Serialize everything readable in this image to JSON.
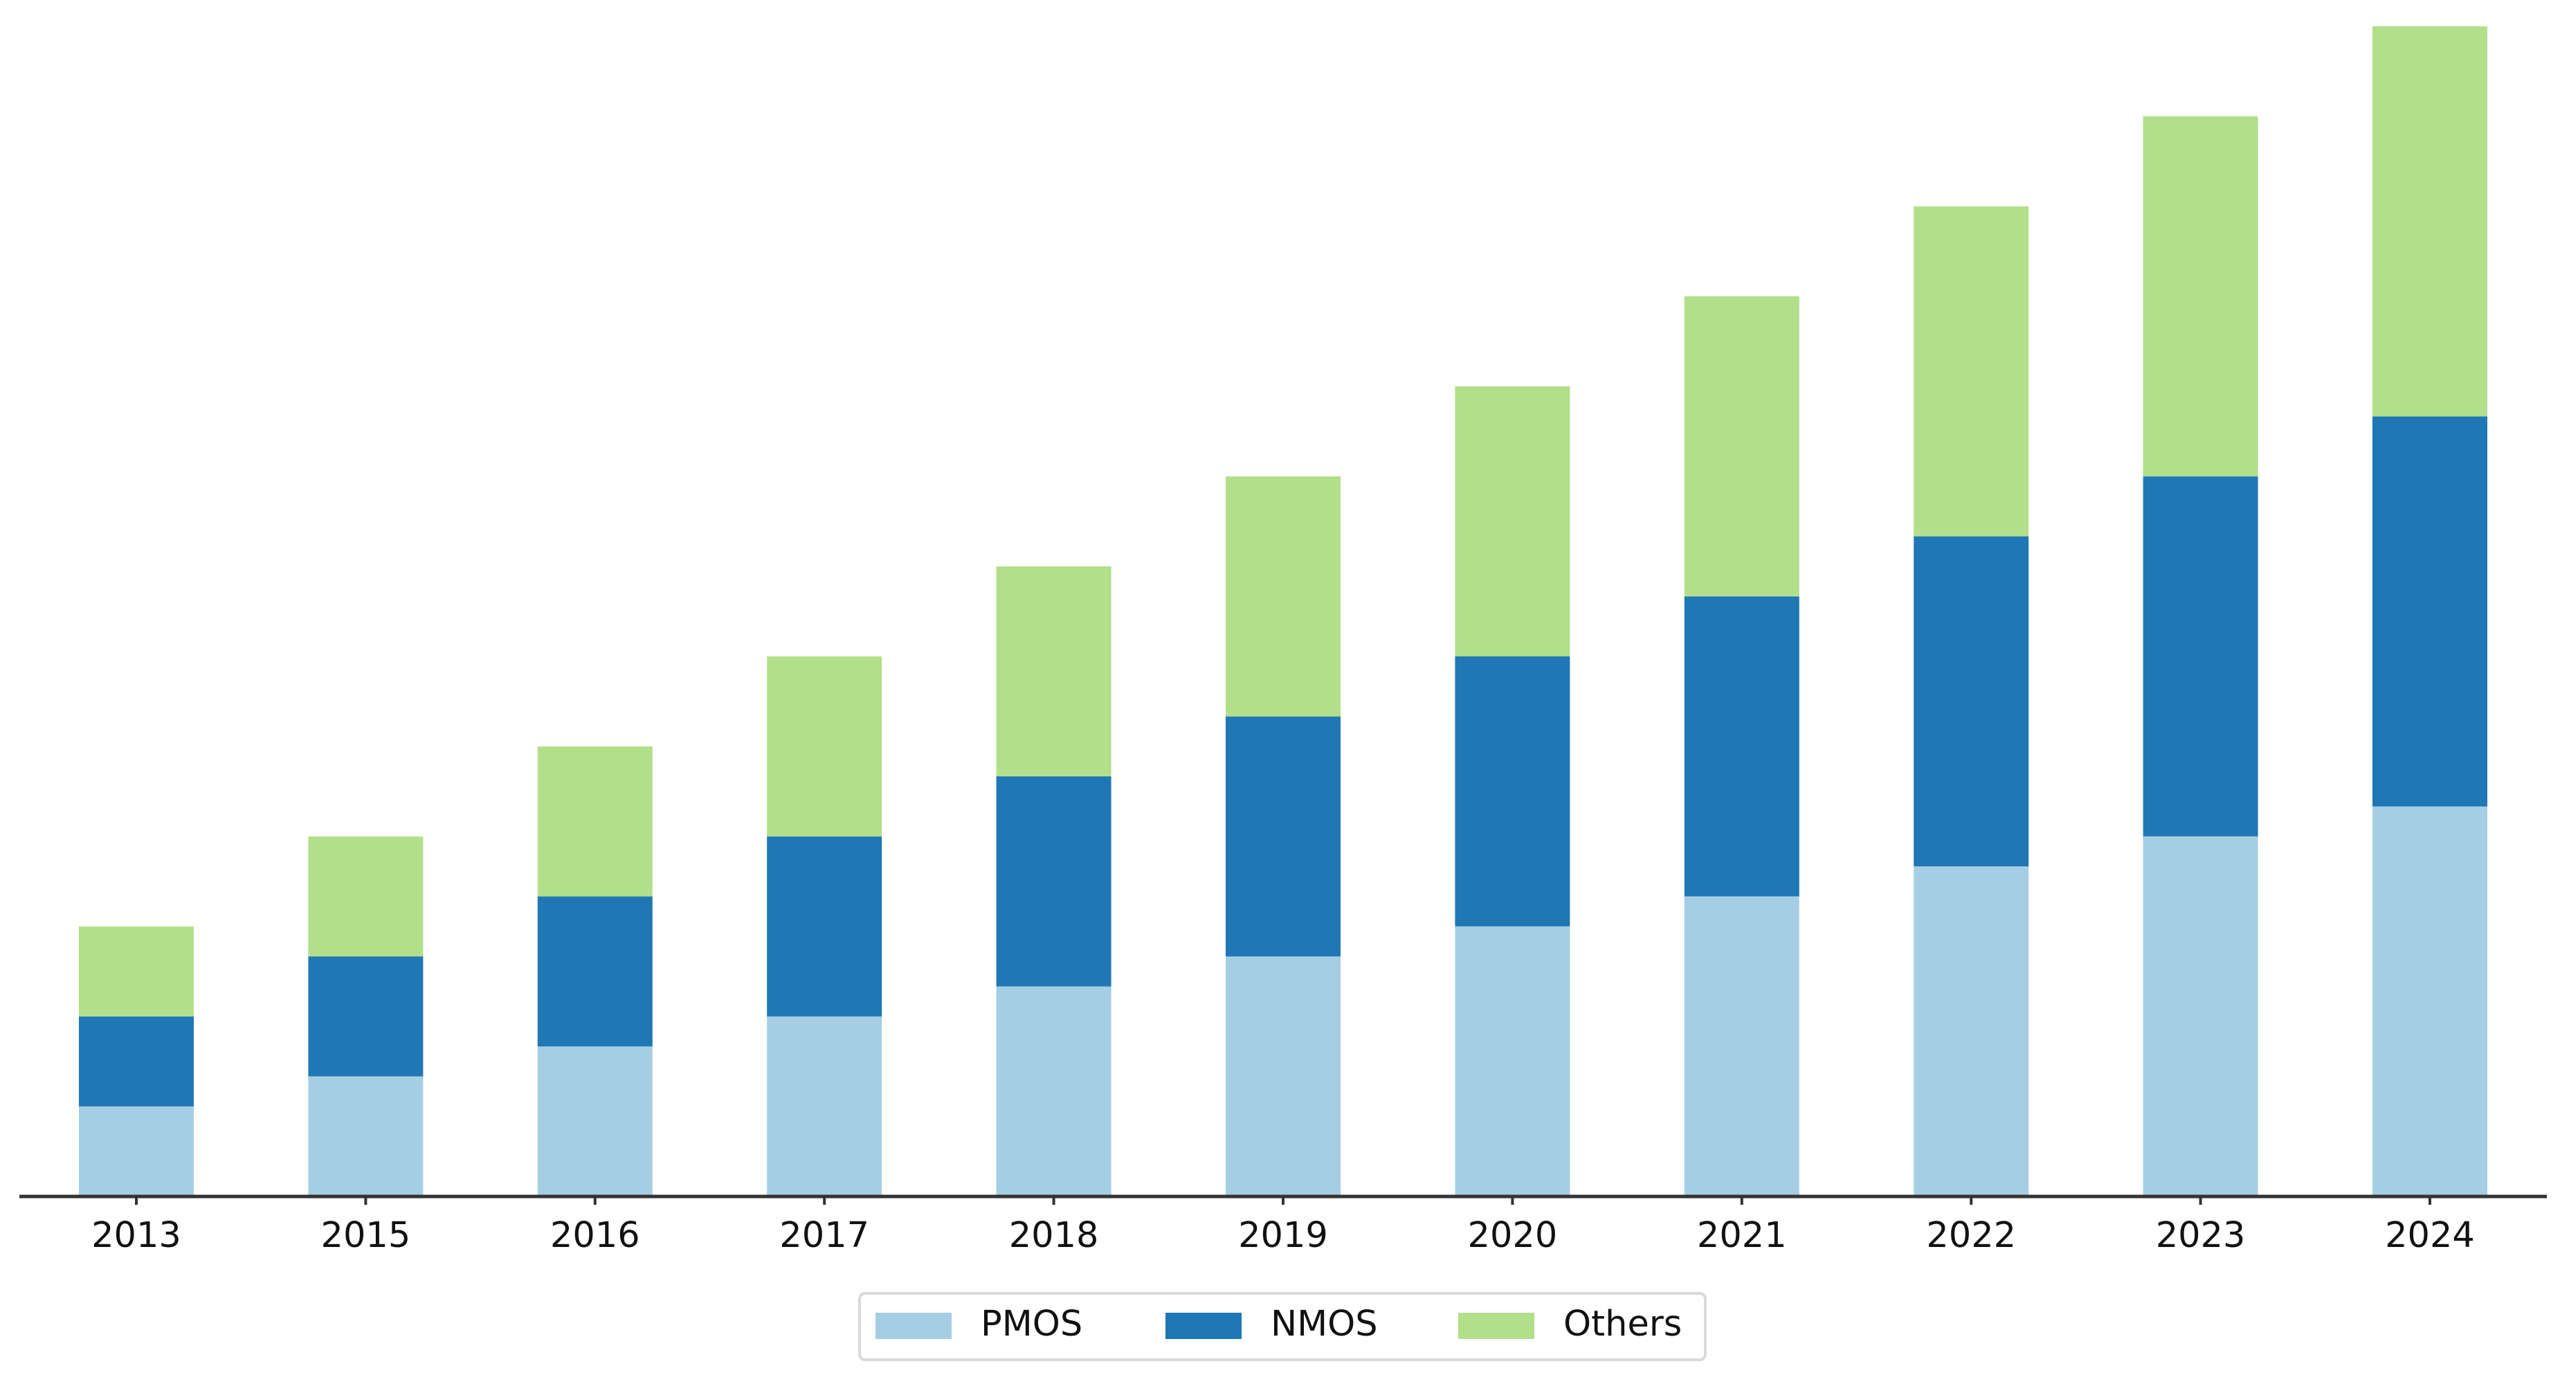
{
  "chart_data": {
    "type": "bar",
    "stacked": true,
    "title": "",
    "xlabel": "",
    "ylabel": "",
    "categories": [
      "2013",
      "2015",
      "2016",
      "2017",
      "2018",
      "2019",
      "2020",
      "2021",
      "2022",
      "2023",
      "2024"
    ],
    "series": [
      {
        "name": "PMOS",
        "color": "#a6cee3",
        "values": [
          3.0,
          4.0,
          5.0,
          6.0,
          7.0,
          8.0,
          9.0,
          10.0,
          11.0,
          12.0,
          13.0
        ]
      },
      {
        "name": "NMOS",
        "color": "#1f78b4",
        "values": [
          3.0,
          4.0,
          5.0,
          6.0,
          7.0,
          8.0,
          9.0,
          10.0,
          11.0,
          12.0,
          13.0
        ]
      },
      {
        "name": "Others",
        "color": "#b2df8a",
        "values": [
          3.0,
          4.0,
          5.0,
          6.0,
          7.0,
          8.0,
          9.0,
          10.0,
          11.0,
          12.0,
          13.0
        ]
      }
    ],
    "ylim": [
      0,
      39
    ],
    "y_axis_visible": false,
    "grid": false,
    "legend_position": "bottom-center"
  }
}
